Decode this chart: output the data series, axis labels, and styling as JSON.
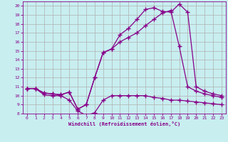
{
  "xlabel": "Windchill (Refroidissement éolien,°C)",
  "bg_color": "#c8eef0",
  "line_color": "#880088",
  "xlim": [
    -0.5,
    23.5
  ],
  "ylim": [
    8,
    20.5
  ],
  "xticks": [
    0,
    1,
    2,
    3,
    4,
    5,
    6,
    7,
    8,
    9,
    10,
    11,
    12,
    13,
    14,
    15,
    16,
    17,
    18,
    19,
    20,
    21,
    22,
    23
  ],
  "yticks": [
    8,
    9,
    10,
    11,
    12,
    13,
    14,
    15,
    16,
    17,
    18,
    19,
    20
  ],
  "grid_color": "#b0b0b0",
  "series": [
    {
      "x": [
        0,
        1,
        2,
        3,
        4,
        5,
        6,
        7,
        8,
        9,
        10,
        11,
        12,
        13,
        14,
        15,
        16,
        17,
        18,
        19,
        20,
        21,
        22,
        23
      ],
      "y": [
        10.8,
        10.8,
        10.1,
        10.0,
        10.0,
        9.5,
        8.3,
        7.8,
        8.1,
        9.5,
        10.0,
        10.0,
        10.0,
        10.0,
        10.0,
        9.8,
        9.7,
        9.5,
        9.5,
        9.4,
        9.3,
        9.2,
        9.1,
        9.0
      ]
    },
    {
      "x": [
        0,
        1,
        2,
        3,
        4,
        5,
        6,
        7,
        8,
        9,
        10,
        11,
        12,
        13,
        14,
        15,
        16,
        17,
        18,
        19,
        20,
        21,
        22,
        23
      ],
      "y": [
        10.8,
        10.8,
        10.3,
        10.2,
        10.1,
        10.4,
        8.5,
        9.0,
        12.0,
        14.8,
        15.2,
        16.0,
        16.5,
        17.0,
        17.8,
        18.5,
        19.2,
        19.5,
        15.5,
        11.0,
        10.5,
        10.2,
        10.0,
        9.8
      ]
    },
    {
      "x": [
        0,
        1,
        2,
        3,
        4,
        5,
        6,
        7,
        8,
        9,
        10,
        11,
        12,
        13,
        14,
        15,
        16,
        17,
        18,
        19,
        20,
        21,
        22,
        23
      ],
      "y": [
        10.8,
        10.8,
        10.3,
        10.2,
        10.1,
        10.4,
        8.5,
        9.0,
        12.0,
        14.8,
        15.2,
        16.8,
        17.5,
        18.5,
        19.6,
        19.8,
        19.4,
        19.3,
        20.2,
        19.3,
        11.0,
        10.5,
        10.2,
        10.0
      ]
    }
  ]
}
